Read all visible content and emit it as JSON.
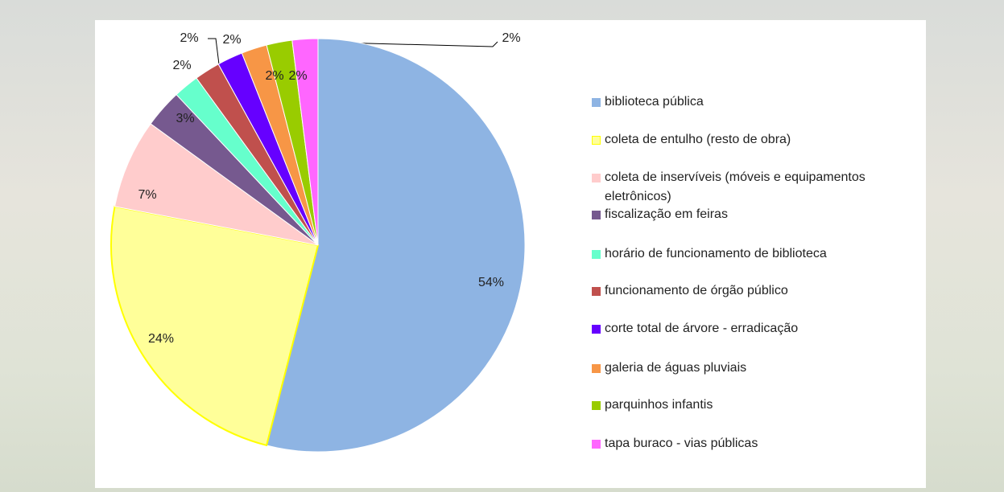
{
  "chart_data": {
    "type": "pie",
    "categories": [
      "biblioteca pública",
      "coleta de entulho (resto de obra)",
      "coleta de inservíveis (móveis e equipamentos eletrônicos)",
      "fiscalização em feiras",
      "horário de funcionamento de biblioteca",
      "funcionamento de órgão público",
      "corte total de árvore - erradicação",
      "galeria de águas pluviais",
      "parquinhos infantis",
      "tapa buraco - vias públicas"
    ],
    "values": [
      54,
      24,
      7,
      3,
      2,
      2,
      2,
      2,
      2,
      2
    ],
    "value_labels": [
      "54%",
      "24%",
      "7%",
      "3%",
      "2%",
      "2%",
      "2%",
      "2%",
      "2%",
      "2%"
    ],
    "colors": [
      "#8eb4e3",
      "#ffff99",
      "#ffcccc",
      "#76598f",
      "#66ffcc",
      "#c0504d",
      "#6600ff",
      "#f79646",
      "#99cc00",
      "#ff66ff"
    ]
  }
}
